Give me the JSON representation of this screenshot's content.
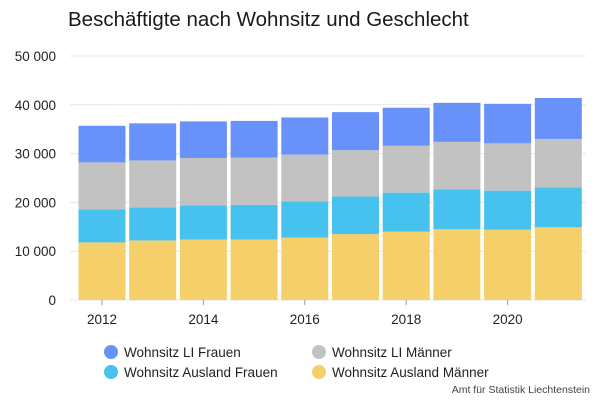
{
  "chart_data": {
    "type": "bar",
    "stacked": true,
    "title": "Beschäftigte nach Wohnsitz und Geschlecht",
    "xlabel": "",
    "ylabel": "",
    "categories": [
      "2012",
      "2013",
      "2014",
      "2015",
      "2016",
      "2017",
      "2018",
      "2019",
      "2020",
      "2021"
    ],
    "x_tick_labels": [
      "2012",
      "2014",
      "2016",
      "2018",
      "2020"
    ],
    "y_tick_labels": [
      "0",
      "10 000",
      "20 000",
      "30 000",
      "40 000",
      "50 000"
    ],
    "ylim": [
      0,
      50000
    ],
    "grid": true,
    "legend_position": "bottom",
    "series": [
      {
        "name": "Wohnsitz Ausland Männer",
        "color": "#f5d06a",
        "values": [
          11800,
          12200,
          12400,
          12400,
          12800,
          13500,
          14000,
          14500,
          14400,
          14900
        ]
      },
      {
        "name": "Wohnsitz Ausland Frauen",
        "color": "#47c2ef",
        "values": [
          6800,
          6800,
          7000,
          7100,
          7400,
          7700,
          8000,
          8200,
          8000,
          8200
        ]
      },
      {
        "name": "Wohnsitz LI Männer",
        "color": "#c2c2c2",
        "values": [
          9600,
          9600,
          9700,
          9700,
          9600,
          9500,
          9600,
          9700,
          9700,
          9900
        ]
      },
      {
        "name": "Wohnsitz LI Frauen",
        "color": "#6891fa",
        "values": [
          7500,
          7600,
          7500,
          7500,
          7600,
          7800,
          7800,
          8000,
          8100,
          8400
        ]
      }
    ],
    "source": "Amt für Statistik Liechtenstein"
  },
  "legend_order": [
    3,
    2,
    1,
    0
  ]
}
